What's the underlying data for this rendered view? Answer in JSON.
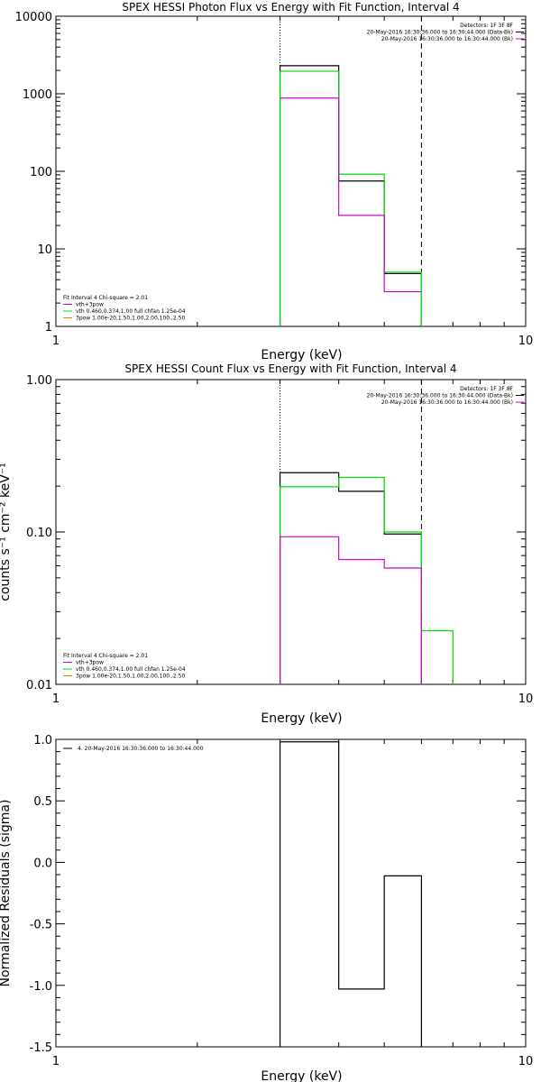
{
  "colors": {
    "background": "#ffffff",
    "axes": "#000000",
    "data_black": "#000000",
    "data_magenta": "#d000d0",
    "data_green": "#00dd00",
    "data_orange": "#dd8800"
  },
  "chart_data": [
    {
      "type": "line",
      "title": "SPEX HESSI Photon Flux vs Energy with Fit Function, Interval 4",
      "xlabel": "Energy (keV)",
      "ylabel": "",
      "xscale": "log",
      "yscale": "log",
      "xlim": [
        1,
        10
      ],
      "ylim": [
        1,
        10000
      ],
      "xticks": [
        {
          "value": 1,
          "label": "1"
        },
        {
          "value": 10,
          "label": "10"
        }
      ],
      "yticks": [
        {
          "value": 1,
          "label": "1"
        },
        {
          "value": 10,
          "label": "10"
        },
        {
          "value": 100,
          "label": "100"
        },
        {
          "value": 1000,
          "label": "1000"
        },
        {
          "value": 10000,
          "label": "10000"
        }
      ],
      "vlines": [
        {
          "x": 3,
          "style": "dotted"
        },
        {
          "x": 6,
          "style": "dashed"
        }
      ],
      "series": [
        {
          "color": "#000000",
          "step": true,
          "edges": [
            3,
            4,
            5,
            6
          ],
          "values": [
            2300,
            75,
            4.8
          ],
          "drop_to_floor": true
        },
        {
          "color": "#00dd00",
          "step": true,
          "edges": [
            3,
            4,
            5,
            6
          ],
          "values": [
            1950,
            92,
            5.0
          ],
          "drop_to_floor": true
        },
        {
          "color": "#d000d0",
          "step": true,
          "edges": [
            3,
            4,
            5,
            6
          ],
          "values": [
            880,
            27,
            2.8
          ],
          "drop_to_floor": false
        }
      ],
      "legend_top": {
        "placement": "top-right",
        "lines": [
          {
            "text": "Detectors: 1F 3F 8F",
            "color": null
          },
          {
            "text": "20-May-2016 16:30:36.000 to 16:30:44.000 (Data-Bk)",
            "color": "#000000"
          },
          {
            "text": "20-May-2016 16:30:36.000 to 16:30:44.000 (Bk)",
            "color": "#d000d0"
          }
        ]
      },
      "legend_bottom": {
        "placement": "bottom-left",
        "lines": [
          {
            "text": "Fit Interval 4   Chi-square = 2.01",
            "color": null
          },
          {
            "text": "vth+3pow",
            "color": "#d000d0"
          },
          {
            "text": "vth 0.460,0.374,1.00  full chfan 1.25e-04",
            "color": "#00dd00"
          },
          {
            "text": "3pow 1.00e-20,1.50,1.00,2.00,100.,2.50",
            "color": "#dd8800"
          }
        ]
      }
    },
    {
      "type": "line",
      "title": "SPEX HESSI Count Flux vs Energy with Fit Function, Interval 4",
      "xlabel": "Energy (keV)",
      "ylabel": "counts s⁻¹ cm⁻² keV⁻¹",
      "xscale": "log",
      "yscale": "log",
      "xlim": [
        1,
        10
      ],
      "ylim": [
        0.01,
        1.0
      ],
      "xticks": [
        {
          "value": 1,
          "label": "1"
        },
        {
          "value": 10,
          "label": "10"
        }
      ],
      "yticks": [
        {
          "value": 0.01,
          "label": "0.01"
        },
        {
          "value": 0.1,
          "label": "0.10"
        },
        {
          "value": 1.0,
          "label": "1.00"
        }
      ],
      "vlines": [
        {
          "x": 3,
          "style": "dotted"
        },
        {
          "x": 6,
          "style": "dashed"
        }
      ],
      "series": [
        {
          "color": "#000000",
          "step": true,
          "edges": [
            3,
            4,
            5,
            6
          ],
          "values": [
            0.245,
            0.185,
            0.097
          ],
          "drop_to_floor": true
        },
        {
          "color": "#00dd00",
          "step": true,
          "edges": [
            3,
            4,
            5,
            6,
            7
          ],
          "values": [
            0.198,
            0.228,
            0.1,
            0.0225
          ],
          "drop_to_floor": true
        },
        {
          "color": "#d000d0",
          "step": true,
          "edges": [
            3,
            4,
            5,
            6
          ],
          "values": [
            0.093,
            0.066,
            0.058
          ],
          "drop_to_floor": true
        }
      ],
      "legend_top": {
        "placement": "top-right",
        "lines": [
          {
            "text": "Detectors: 1F 3F 8F",
            "color": null
          },
          {
            "text": "20-May-2016 16:30:36.000 to 16:30:44.000 (Data-Bk)",
            "color": "#000000"
          },
          {
            "text": "20-May-2016 16:30:36.000 to 16:30:44.000 (Bk)",
            "color": "#d000d0"
          }
        ]
      },
      "legend_bottom": {
        "placement": "bottom-left",
        "lines": [
          {
            "text": "Fit Interval 4   Chi-square = 2.01",
            "color": null
          },
          {
            "text": "vth+3pow",
            "color": "#d000d0"
          },
          {
            "text": "vth 0.460,0.374,1.00  full chfan 1.25e-04",
            "color": "#00dd00"
          },
          {
            "text": "3pow 1.00e-20,1.50,1.00,2.00,100.,2.50",
            "color": "#dd8800"
          }
        ]
      }
    },
    {
      "type": "line",
      "title": "",
      "xlabel": "Energy (keV)",
      "ylabel": "Normalized Residuals (sigma)",
      "xscale": "log",
      "yscale": "linear",
      "xlim": [
        1,
        10
      ],
      "ylim": [
        -1.5,
        1.0
      ],
      "xticks": [
        {
          "value": 1,
          "label": "1"
        },
        {
          "value": 10,
          "label": "10"
        }
      ],
      "yticks": [
        {
          "value": 1.0,
          "label": "1.0"
        },
        {
          "value": 0.5,
          "label": "0.5"
        },
        {
          "value": 0.0,
          "label": "0.0"
        },
        {
          "value": -0.5,
          "label": "-0.5"
        },
        {
          "value": -1.0,
          "label": "-1.0"
        },
        {
          "value": -1.5,
          "label": "-1.5"
        }
      ],
      "vlines": [],
      "series": [
        {
          "color": "#000000",
          "step": true,
          "edges": [
            3,
            4,
            5,
            6
          ],
          "values": [
            0.98,
            -1.03,
            -0.11
          ],
          "drop_to_floor": true
        }
      ],
      "legend_top": {
        "placement": "top-left",
        "lines": [
          {
            "text": "4. 20-May-2016 16:30:36.000 to 16:30:44.000",
            "color": "#000000"
          }
        ]
      },
      "legend_bottom": null
    }
  ]
}
